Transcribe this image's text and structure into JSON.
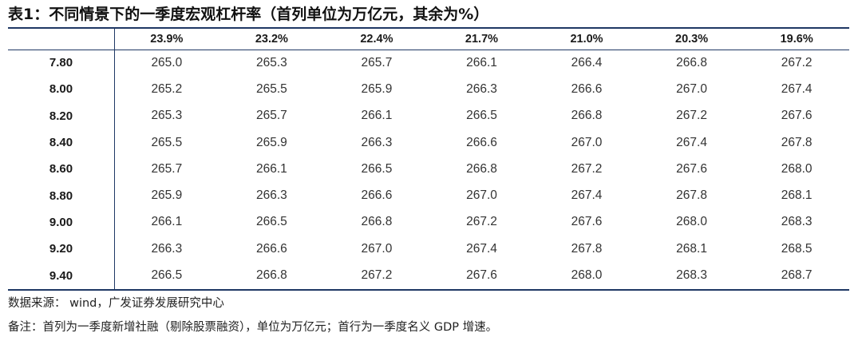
{
  "title": "表1：不同情景下的一季度宏观杠杆率（首列单位为万亿元，其余为%）",
  "table": {
    "columns": [
      "23.9%",
      "23.2%",
      "22.4%",
      "21.7%",
      "21.0%",
      "20.3%",
      "19.6%"
    ],
    "rows": [
      {
        "label": "7.80",
        "values": [
          "265.0",
          "265.3",
          "265.7",
          "266.1",
          "266.4",
          "266.8",
          "267.2"
        ]
      },
      {
        "label": "8.00",
        "values": [
          "265.2",
          "265.5",
          "265.9",
          "266.3",
          "266.6",
          "267.0",
          "267.4"
        ]
      },
      {
        "label": "8.20",
        "values": [
          "265.3",
          "265.7",
          "266.1",
          "266.5",
          "266.8",
          "267.2",
          "267.6"
        ]
      },
      {
        "label": "8.40",
        "values": [
          "265.5",
          "265.9",
          "266.3",
          "266.6",
          "267.0",
          "267.4",
          "267.8"
        ]
      },
      {
        "label": "8.60",
        "values": [
          "265.7",
          "266.1",
          "266.5",
          "266.8",
          "267.2",
          "267.6",
          "268.0"
        ]
      },
      {
        "label": "8.80",
        "values": [
          "265.9",
          "266.3",
          "266.6",
          "267.0",
          "267.4",
          "267.8",
          "268.1"
        ]
      },
      {
        "label": "9.00",
        "values": [
          "266.1",
          "266.5",
          "266.8",
          "267.2",
          "267.6",
          "268.0",
          "268.3"
        ]
      },
      {
        "label": "9.20",
        "values": [
          "266.3",
          "266.6",
          "267.0",
          "267.4",
          "267.8",
          "268.1",
          "268.5"
        ]
      },
      {
        "label": "9.40",
        "values": [
          "266.5",
          "266.8",
          "267.2",
          "267.6",
          "268.0",
          "268.3",
          "268.7"
        ]
      }
    ]
  },
  "source": "数据来源： wind，广发证券发展研究中心",
  "remark": "备注：首列为一季度新增社融（剔除股票融资），单位为万亿元；首行为一季度名义 GDP 增速。",
  "colors": {
    "rule": "#1f3864",
    "text": "#333333"
  }
}
